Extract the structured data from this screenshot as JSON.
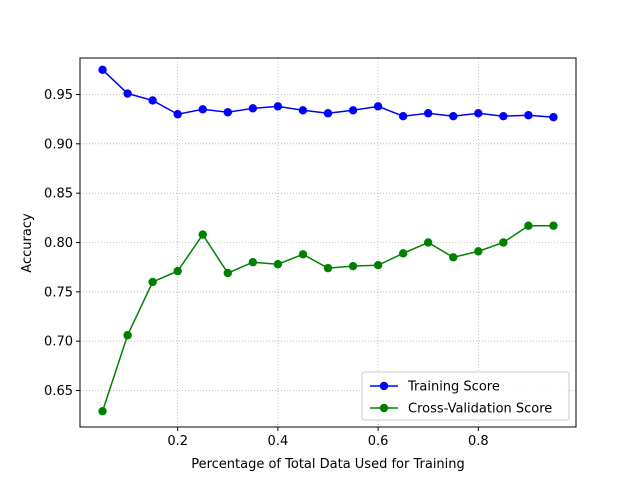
{
  "chart_data": {
    "type": "line",
    "title": "",
    "xlabel": "Percentage of Total Data Used for Training",
    "ylabel": "Accuracy",
    "xlim": [
      0.005,
      0.995
    ],
    "ylim": [
      0.613,
      0.987
    ],
    "x_ticks": [
      {
        "value": 0.2,
        "label": "0.2"
      },
      {
        "value": 0.4,
        "label": "0.4"
      },
      {
        "value": 0.6,
        "label": "0.6"
      },
      {
        "value": 0.8,
        "label": "0.8"
      }
    ],
    "y_ticks": [
      {
        "value": 0.65,
        "label": "0.65"
      },
      {
        "value": 0.7,
        "label": "0.70"
      },
      {
        "value": 0.75,
        "label": "0.75"
      },
      {
        "value": 0.8,
        "label": "0.80"
      },
      {
        "value": 0.85,
        "label": "0.85"
      },
      {
        "value": 0.9,
        "label": "0.90"
      },
      {
        "value": 0.95,
        "label": "0.95"
      }
    ],
    "grid": true,
    "legend_position": "lower-right",
    "x": [
      0.05,
      0.1,
      0.15,
      0.2,
      0.25,
      0.3,
      0.35,
      0.4,
      0.45,
      0.5,
      0.55,
      0.6,
      0.65,
      0.7,
      0.75,
      0.8,
      0.85,
      0.9,
      0.95
    ],
    "series": [
      {
        "name": "Training Score",
        "color": "#0000ff",
        "values": [
          0.975,
          0.951,
          0.944,
          0.93,
          0.935,
          0.932,
          0.936,
          0.938,
          0.934,
          0.931,
          0.934,
          0.938,
          0.928,
          0.931,
          0.928,
          0.931,
          0.928,
          0.929,
          0.927
        ]
      },
      {
        "name": "Cross-Validation Score",
        "color": "#008000",
        "values": [
          0.629,
          0.706,
          0.76,
          0.771,
          0.808,
          0.769,
          0.78,
          0.778,
          0.788,
          0.774,
          0.776,
          0.777,
          0.789,
          0.8,
          0.785,
          0.791,
          0.8,
          0.817,
          0.817
        ]
      }
    ]
  }
}
